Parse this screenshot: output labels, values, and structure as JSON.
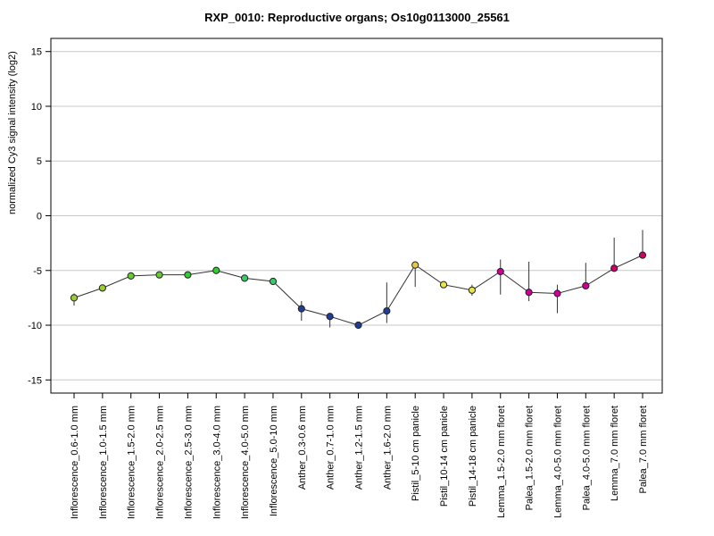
{
  "chart_data": {
    "type": "line",
    "title": "RXP_0010: Reproductive organs; Os10g0113000_25561",
    "xlabel": "",
    "ylabel": "normalized Cy3 signal intensity (log2)",
    "ylim": [
      -16.2,
      16.2
    ],
    "yticks": [
      15,
      10,
      5,
      0,
      -5,
      -10,
      -15
    ],
    "grid": true,
    "categories": [
      "Inflorescence_0.6-1.0 mm",
      "Inflorescence_1.0-1.5 mm",
      "Inflorescence_1.5-2.0 mm",
      "Inflorescence_2.0-2.5 mm",
      "Inflorescence_2.5-3.0 mm",
      "Inflorescence_3.0-4.0 mm",
      "Inflorescence_4.0-5.0 mm",
      "Inflorescence_5.0-10 mm",
      "Anther_0.3-0.6 mm",
      "Anther_0.7-1.0 mm",
      "Anther_1.2-1.5 mm",
      "Anther_1.6-2.0 mm",
      "Pistil_5-10 cm panicle",
      "Pistil_10-14 cm panicle",
      "Pistil_14-18 cm panicle",
      "Lemma_1.5-2.0 mm floret",
      "Palea_1.5-2.0 mm floret",
      "Lemma_4.0-5.0 mm floret",
      "Palea_4.0-5.0 mm floret",
      "Lemma_7.0 mm floret",
      "Palea_7.0 mm floret"
    ],
    "values": [
      -7.5,
      -6.6,
      -5.5,
      -5.4,
      -5.4,
      -5.0,
      -5.7,
      -6.0,
      -8.5,
      -9.2,
      -10.0,
      -8.7,
      -4.5,
      -6.3,
      -6.8,
      -5.1,
      -7.0,
      -7.1,
      -6.4,
      -4.8,
      -3.6
    ],
    "err_low": [
      -8.2,
      -6.6,
      -5.5,
      -5.5,
      -5.7,
      -5.0,
      -5.7,
      -6.0,
      -9.6,
      -10.2,
      -10.0,
      -9.8,
      -6.5,
      -6.3,
      -7.3,
      -7.2,
      -7.8,
      -8.9,
      -6.4,
      -4.8,
      -3.6
    ],
    "err_high": [
      -7.1,
      -6.6,
      -5.5,
      -5.4,
      -5.1,
      -5.0,
      -5.7,
      -6.0,
      -7.8,
      -9.2,
      -10.0,
      -6.1,
      -4.5,
      -6.3,
      -6.3,
      -4.0,
      -4.2,
      -6.3,
      -4.3,
      -2.0,
      -1.3
    ],
    "point_colors": [
      "#9acd32",
      "#9acd32",
      "#66cc33",
      "#66cc33",
      "#33cc33",
      "#33cc33",
      "#33cc66",
      "#33cc66",
      "#1c3f99",
      "#1c3f99",
      "#1c3f99",
      "#1c3f99",
      "#e6c84a",
      "#e6e64a",
      "#e6e64a",
      "#cc0099",
      "#cc0099",
      "#cc0099",
      "#cc0099",
      "#cc0066",
      "#cc0066"
    ],
    "line_color": "#333333"
  }
}
